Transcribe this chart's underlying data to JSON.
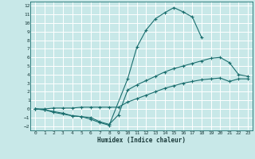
{
  "xlabel": "Humidex (Indice chaleur)",
  "bg_color": "#c8e8e8",
  "grid_color": "#ffffff",
  "line_color": "#1a6e6e",
  "xlim": [
    -0.5,
    23.5
  ],
  "ylim": [
    -2.5,
    12.5
  ],
  "xticks": [
    0,
    1,
    2,
    3,
    4,
    5,
    6,
    7,
    8,
    9,
    10,
    11,
    12,
    13,
    14,
    15,
    16,
    17,
    18,
    19,
    20,
    21,
    22,
    23
  ],
  "yticks": [
    -2,
    -1,
    0,
    1,
    2,
    3,
    4,
    5,
    6,
    7,
    8,
    9,
    10,
    11,
    12
  ],
  "line_top_x": [
    0,
    1,
    2,
    3,
    4,
    5,
    6,
    7,
    8,
    10,
    11,
    12,
    13,
    14,
    15,
    16,
    17,
    18
  ],
  "line_top_y": [
    0,
    -0.1,
    -0.4,
    -0.6,
    -0.8,
    -0.9,
    -1.2,
    -1.6,
    -1.9,
    3.5,
    7.2,
    9.2,
    10.5,
    11.2,
    11.8,
    11.3,
    10.7,
    8.3
  ],
  "line_mid_x": [
    0,
    1,
    2,
    3,
    4,
    5,
    6,
    7,
    8,
    9,
    10,
    11,
    12,
    13,
    14,
    15,
    16,
    17,
    18,
    19,
    20,
    21,
    22,
    23
  ],
  "line_mid_y": [
    0,
    -0.1,
    -0.3,
    -0.5,
    -0.8,
    -0.9,
    -1.0,
    -1.5,
    -1.8,
    -0.7,
    2.2,
    2.8,
    3.3,
    3.8,
    4.3,
    4.7,
    5.0,
    5.3,
    5.6,
    5.9,
    6.0,
    5.4,
    4.0,
    3.8
  ],
  "line_bot_x": [
    0,
    1,
    2,
    3,
    4,
    5,
    6,
    7,
    8,
    9,
    10,
    11,
    12,
    13,
    14,
    15,
    16,
    17,
    18,
    19,
    20,
    21,
    22,
    23
  ],
  "line_bot_y": [
    0,
    0.0,
    0.1,
    0.1,
    0.1,
    0.2,
    0.2,
    0.2,
    0.2,
    0.2,
    0.8,
    1.2,
    1.6,
    2.0,
    2.4,
    2.7,
    3.0,
    3.2,
    3.4,
    3.5,
    3.6,
    3.2,
    3.5,
    3.5
  ]
}
